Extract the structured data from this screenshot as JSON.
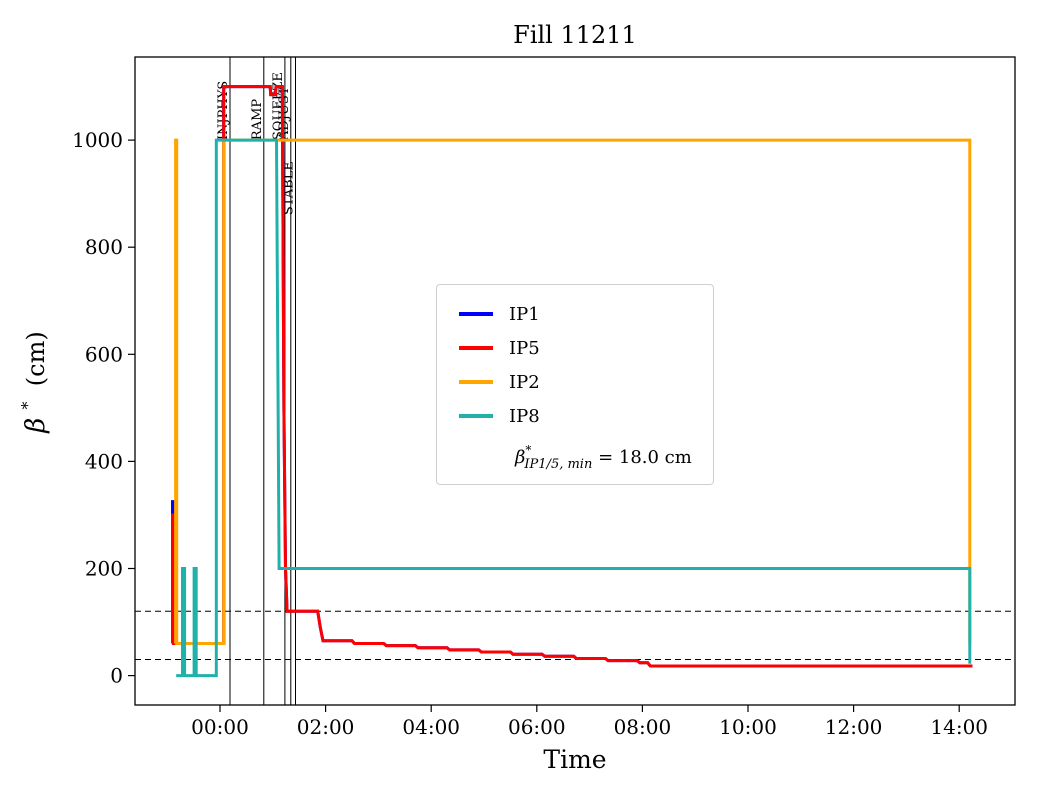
{
  "title": "Fill 11211",
  "axes": {
    "xlabel": "Time",
    "ylabel_beta": "β",
    "ylabel_sup": "*",
    "ylabel_rest": "(cm)",
    "x_ticks": [
      {
        "h": 0,
        "label": "00:00"
      },
      {
        "h": 2,
        "label": "02:00"
      },
      {
        "h": 4,
        "label": "04:00"
      },
      {
        "h": 6,
        "label": "06:00"
      },
      {
        "h": 8,
        "label": "08:00"
      },
      {
        "h": 10,
        "label": "10:00"
      },
      {
        "h": 12,
        "label": "12:00"
      },
      {
        "h": 14,
        "label": "14:00"
      }
    ],
    "y_ticks": [
      0,
      200,
      400,
      600,
      800,
      1000
    ]
  },
  "chart_data": {
    "type": "line",
    "title": "Fill 11211",
    "xlabel": "Time",
    "ylabel": "beta* (cm)",
    "x_unit": "hours relative to 00:00",
    "xlim": [
      -1.6,
      15.0
    ],
    "ylim": [
      -55,
      1160
    ],
    "grid": false,
    "legend_position": "center",
    "dashed_hlines_cm": [
      120,
      30
    ],
    "mode_lines": [
      {
        "label": "INJPHYS",
        "h": 0.19,
        "anchor_cm": 1000
      },
      {
        "label": "RAMP",
        "h": 0.83,
        "anchor_cm": 1000
      },
      {
        "label": "SQUEEZE",
        "h": 1.23,
        "anchor_cm": 1000
      },
      {
        "label": "ADJUST",
        "h": 1.34,
        "anchor_cm": 1000
      },
      {
        "label": "STABLE",
        "h": 1.43,
        "anchor_cm": 860
      }
    ],
    "series": [
      {
        "name": "IP1",
        "color": "#0000ff",
        "points": [
          [
            -0.9,
            60
          ],
          [
            -0.9,
            325
          ],
          [
            -0.88,
            325
          ],
          [
            -0.88,
            60
          ],
          [
            0.07,
            60
          ],
          [
            0.07,
            1100
          ],
          [
            0.95,
            1100
          ],
          [
            0.96,
            1085
          ],
          [
            1.05,
            1085
          ],
          [
            1.06,
            1100
          ],
          [
            1.18,
            1100
          ],
          [
            1.21,
            500
          ],
          [
            1.24,
            200
          ],
          [
            1.27,
            120
          ],
          [
            1.85,
            120
          ],
          [
            1.9,
            90
          ],
          [
            1.95,
            65
          ],
          [
            2.5,
            65
          ],
          [
            2.55,
            60
          ],
          [
            3.1,
            60
          ],
          [
            3.15,
            56
          ],
          [
            3.7,
            56
          ],
          [
            3.75,
            52
          ],
          [
            4.3,
            52
          ],
          [
            4.35,
            48
          ],
          [
            4.9,
            48
          ],
          [
            4.95,
            44
          ],
          [
            5.5,
            44
          ],
          [
            5.55,
            40
          ],
          [
            6.1,
            40
          ],
          [
            6.15,
            36
          ],
          [
            6.7,
            36
          ],
          [
            6.75,
            32
          ],
          [
            7.3,
            32
          ],
          [
            7.35,
            28
          ],
          [
            7.9,
            28
          ],
          [
            7.95,
            24
          ],
          [
            8.1,
            24
          ],
          [
            8.15,
            18
          ],
          [
            14.25,
            18
          ]
        ]
      },
      {
        "name": "IP5",
        "color": "#ff0000",
        "points": [
          [
            -0.9,
            60
          ],
          [
            -0.9,
            300
          ],
          [
            -0.88,
            300
          ],
          [
            -0.88,
            60
          ],
          [
            0.07,
            60
          ],
          [
            0.07,
            1100
          ],
          [
            0.95,
            1100
          ],
          [
            0.96,
            1085
          ],
          [
            1.05,
            1085
          ],
          [
            1.06,
            1100
          ],
          [
            1.18,
            1100
          ],
          [
            1.21,
            500
          ],
          [
            1.24,
            200
          ],
          [
            1.27,
            120
          ],
          [
            1.85,
            120
          ],
          [
            1.9,
            90
          ],
          [
            1.95,
            65
          ],
          [
            2.5,
            65
          ],
          [
            2.55,
            60
          ],
          [
            3.1,
            60
          ],
          [
            3.15,
            56
          ],
          [
            3.7,
            56
          ],
          [
            3.75,
            52
          ],
          [
            4.3,
            52
          ],
          [
            4.35,
            48
          ],
          [
            4.9,
            48
          ],
          [
            4.95,
            44
          ],
          [
            5.5,
            44
          ],
          [
            5.55,
            40
          ],
          [
            6.1,
            40
          ],
          [
            6.15,
            36
          ],
          [
            6.7,
            36
          ],
          [
            6.75,
            32
          ],
          [
            7.3,
            32
          ],
          [
            7.35,
            28
          ],
          [
            7.9,
            28
          ],
          [
            7.95,
            24
          ],
          [
            8.1,
            24
          ],
          [
            8.15,
            18
          ],
          [
            14.25,
            18
          ]
        ]
      },
      {
        "name": "IP2",
        "color": "#ffa500",
        "points": [
          [
            -0.84,
            60
          ],
          [
            -0.84,
            1000
          ],
          [
            -0.82,
            1000
          ],
          [
            -0.82,
            60
          ],
          [
            0.07,
            60
          ],
          [
            0.07,
            1000
          ],
          [
            14.2,
            1000
          ],
          [
            14.2,
            60
          ]
        ]
      },
      {
        "name": "IP8",
        "color": "#20b2aa",
        "points": [
          [
            -0.83,
            0
          ],
          [
            -0.71,
            0
          ],
          [
            -0.71,
            200
          ],
          [
            -0.67,
            200
          ],
          [
            -0.67,
            0
          ],
          [
            -0.49,
            0
          ],
          [
            -0.49,
            200
          ],
          [
            -0.45,
            200
          ],
          [
            -0.45,
            0
          ],
          [
            -0.07,
            0
          ],
          [
            -0.07,
            1000
          ],
          [
            1.07,
            1000
          ],
          [
            1.12,
            200
          ],
          [
            14.2,
            200
          ],
          [
            14.2,
            22
          ]
        ]
      }
    ]
  },
  "legend": {
    "entries": [
      {
        "label": "IP1",
        "color": "#0000ff"
      },
      {
        "label": "IP5",
        "color": "#ff0000"
      },
      {
        "label": "IP2",
        "color": "#ffa500"
      },
      {
        "label": "IP8",
        "color": "#20b2aa"
      }
    ],
    "formula": {
      "beta": "β",
      "star": "*",
      "sub": "IP1/5, min",
      "rest": " = 18.0 cm"
    }
  }
}
